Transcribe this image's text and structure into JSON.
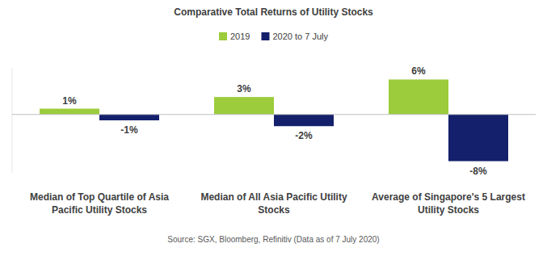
{
  "chart_data": {
    "type": "bar",
    "title": "Comparative Total Returns of Utility Stocks",
    "categories": [
      "Median of Top Quartile of Asia Pacific Utility Stocks",
      "Median of All Asia Pacific Utility Stocks",
      "Average of Singapore's 5 Largest Utility Stocks"
    ],
    "series": [
      {
        "name": "2019",
        "color": "#9ccc3c",
        "values": [
          1,
          3,
          6
        ],
        "value_labels": [
          "1%",
          "3%",
          "6%"
        ]
      },
      {
        "name": "2020 to 7 July",
        "color": "#14206b",
        "values": [
          -1,
          -2,
          -8
        ],
        "value_labels": [
          "-1%",
          "-2%",
          "-8%"
        ]
      }
    ],
    "ylim": [
      -10,
      8
    ],
    "yticks": [
      0
    ],
    "tick_labels": false,
    "data_labels": true,
    "legend": "top",
    "grid": false,
    "annotations": [
      "Source: SGX, Bloomberg, Refinitiv (Data as of 7 July 2020)"
    ]
  }
}
